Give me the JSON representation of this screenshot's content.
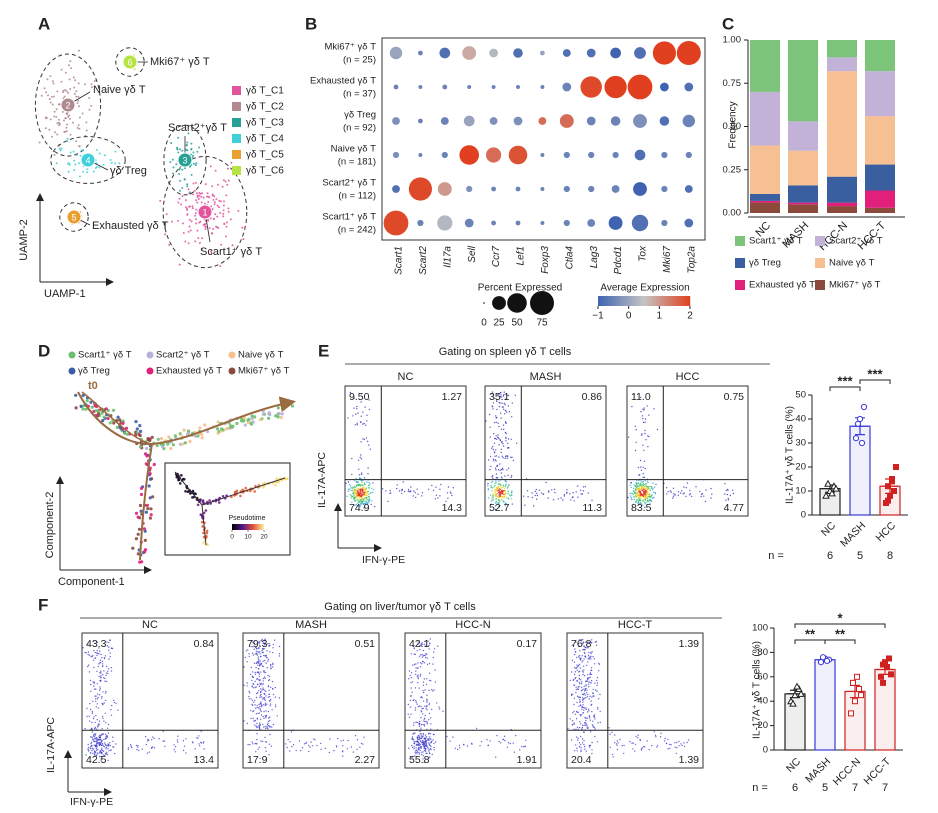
{
  "chart_data": [
    {
      "type": "umap",
      "panel": "A",
      "xlabel": "UAMP-1",
      "ylabel": "UAMP-2",
      "clusters": [
        {
          "name": "γδ T_C1",
          "number": 1,
          "color": "#e2559c",
          "label": "Scart1⁺ γδ T"
        },
        {
          "name": "γδ T_C2",
          "number": 2,
          "color": "#b08a8e",
          "label": "Naive γδ T"
        },
        {
          "name": "γδ T_C3",
          "number": 3,
          "color": "#27a196",
          "label": "Scart2⁺γδ T"
        },
        {
          "name": "γδ T_C4",
          "number": 4,
          "color": "#3fd0da",
          "label": "γδ Treg"
        },
        {
          "name": "γδ T_C5",
          "number": 5,
          "color": "#e8a030",
          "label": "Exhausted γδ T"
        },
        {
          "name": "γδ T_C6",
          "number": 6,
          "color": "#b6e444",
          "label": "Mki67⁺ γδ T"
        }
      ]
    },
    {
      "type": "dotplot",
      "panel": "B",
      "genes": [
        "Scart1",
        "Scart2",
        "Il17a",
        "Sell",
        "Ccr7",
        "Lef1",
        "Foxp3",
        "Ctla4",
        "Lag3",
        "Pdcd1",
        "Tox",
        "Mki67",
        "Top2a"
      ],
      "rows": [
        {
          "name": "Mki67⁺ γδ T",
          "n": "(n = 25)"
        },
        {
          "name": "Exhausted γδ T",
          "n": "(n = 37)"
        },
        {
          "name": "γδ Treg",
          "n": "(n = 92)"
        },
        {
          "name": "Naive γδ T",
          "n": "(n = 181)"
        },
        {
          "name": "Scart2⁺ γδ T",
          "n": "(n = 112)"
        },
        {
          "name": "Scart1⁺ γδ T",
          "n": "(n = 242)"
        }
      ],
      "percent": [
        [
          20,
          3,
          15,
          25,
          10,
          12,
          3,
          8,
          10,
          15,
          18,
          70,
          75
        ],
        [
          3,
          2,
          3,
          2,
          2,
          2,
          2,
          10,
          60,
          65,
          80,
          10,
          10
        ],
        [
          8,
          3,
          8,
          15,
          8,
          10,
          8,
          25,
          10,
          12,
          25,
          12,
          20
        ],
        [
          5,
          2,
          5,
          50,
          30,
          45,
          2,
          5,
          5,
          5,
          15,
          5,
          5
        ],
        [
          8,
          70,
          25,
          5,
          3,
          3,
          2,
          5,
          5,
          8,
          25,
          5,
          8
        ],
        [
          80,
          5,
          30,
          10,
          3,
          3,
          2,
          5,
          8,
          25,
          35,
          5,
          10
        ]
      ],
      "expression": [
        [
          0,
          -0.5,
          -0.8,
          0.8,
          0.3,
          -0.8,
          0,
          -0.8,
          -0.8,
          -1,
          -0.8,
          2,
          2
        ],
        [
          -0.5,
          -0.5,
          -0.5,
          -0.5,
          -0.5,
          -0.5,
          -0.5,
          -0.5,
          1.9,
          2,
          2,
          -1,
          -0.8
        ],
        [
          -0.3,
          -0.5,
          -0.5,
          0,
          -0.3,
          -0.3,
          1.5,
          1.5,
          -0.5,
          -0.5,
          -0.3,
          -0.8,
          -0.5
        ],
        [
          -0.3,
          -0.5,
          -0.5,
          2,
          1.5,
          1.8,
          -0.5,
          -0.5,
          -0.5,
          -0.5,
          -0.8,
          -0.5,
          -0.5
        ],
        [
          -0.8,
          1.9,
          1,
          -0.3,
          -0.5,
          -0.5,
          -0.5,
          -0.5,
          -0.5,
          -0.5,
          -1,
          -0.5,
          -0.8
        ],
        [
          1.9,
          -0.5,
          0.3,
          -0.5,
          -0.5,
          -0.5,
          -0.5,
          -0.5,
          -0.5,
          -1,
          -0.8,
          -0.5,
          -0.8
        ]
      ],
      "size_title": "Percent Expressed",
      "size_ticks": [
        0,
        25,
        50,
        75
      ],
      "color_title": "Average Expression",
      "clim": [
        -1,
        2
      ],
      "color_ticks": [
        {
          "value": -1,
          "label": "−1"
        },
        0,
        1,
        2
      ],
      "colors": [
        "#3f63b0",
        "#c4c4c4",
        "#e0401f"
      ]
    },
    {
      "type": "stacked_bar",
      "panel": "C",
      "ylabel": "Frequency",
      "categories": [
        "NC",
        "MASH",
        "HCC-N",
        "HCC-T"
      ],
      "series": [
        {
          "name": "Mki67⁺ γδ T",
          "color": "#8b4a3c",
          "values": [
            0.06,
            0.05,
            0.04,
            0.03
          ]
        },
        {
          "name": "Exhausted γδ T",
          "color": "#e0207a",
          "values": [
            0.01,
            0.01,
            0.02,
            0.1
          ]
        },
        {
          "name": "γδ Treg",
          "color": "#3a5fa0",
          "values": [
            0.04,
            0.1,
            0.15,
            0.15
          ]
        },
        {
          "name": "Naive γδ T",
          "color": "#f6c092",
          "values": [
            0.28,
            0.2,
            0.61,
            0.28
          ]
        },
        {
          "name": "Scart2⁺ γδ T",
          "color": "#c2b2d8",
          "values": [
            0.31,
            0.17,
            0.08,
            0.26
          ]
        },
        {
          "name": "Scart1⁺ γδ T",
          "color": "#7cc47a",
          "values": [
            0.3,
            0.47,
            0.1,
            0.18
          ]
        }
      ],
      "ylim": [
        0,
        1
      ],
      "yticks": [
        {
          "value": 0,
          "label": "0.00"
        },
        {
          "value": 0.25,
          "label": "0.25"
        },
        {
          "value": 0.5,
          "label": "0.50"
        },
        {
          "value": 0.75,
          "label": "0.75"
        },
        {
          "value": 1,
          "label": "1.00"
        }
      ]
    },
    {
      "type": "trajectory",
      "panel": "D",
      "xlabel": "Component-1",
      "ylabel": "Component-2",
      "start_label": "t0",
      "legend": [
        {
          "name": "Scart1⁺ γδ T",
          "color": "#6cbf6a"
        },
        {
          "name": "Scart2⁺ γδ T",
          "color": "#b8b0d8"
        },
        {
          "name": "Naive γδ T",
          "color": "#f5c08a"
        },
        {
          "name": "γδ Treg",
          "color": "#3a5ca8"
        },
        {
          "name": "Exhausted γδ T",
          "color": "#e0207a"
        },
        {
          "name": "Mki67⁺ γδ T",
          "color": "#8b4a3c"
        }
      ],
      "inset_title": "Pseudotime",
      "inset_ticks": [
        0,
        10,
        20
      ]
    },
    {
      "type": "flow",
      "panel": "E",
      "title": "Gating on spleen γδ T cells",
      "xlabel": "IFN-γ-PE",
      "ylabel": "IL-17A-APC",
      "density": true,
      "groups": [
        {
          "name": "NC",
          "quadrants": [
            "9.50",
            "1.27",
            "74.9",
            "14.3"
          ]
        },
        {
          "name": "MASH",
          "quadrants": [
            "35.1",
            "0.86",
            "52.7",
            "11.3"
          ]
        },
        {
          "name": "HCC",
          "quadrants": [
            "11.0",
            "0.75",
            "83.5",
            "4.77"
          ]
        }
      ]
    },
    {
      "type": "bar",
      "ylabel": "IL-17A⁺ γδ T cells (%)",
      "categories": [
        "NC",
        "MASH",
        "HCC"
      ],
      "values": [
        11,
        37,
        12
      ],
      "errors": [
        1.5,
        3.5,
        3
      ],
      "points": [
        [
          8,
          10,
          12,
          13,
          9,
          11
        ],
        [
          32,
          40,
          45,
          38,
          30
        ],
        [
          5,
          8,
          10,
          12,
          15,
          20,
          6,
          14
        ]
      ],
      "colors": [
        "#222222",
        "#3a3ad8",
        "#d02020"
      ],
      "ylim": [
        0,
        50
      ],
      "yticks": [
        0,
        10,
        20,
        30,
        40,
        50
      ],
      "significance": [
        "***",
        "***"
      ],
      "n_label": "n =",
      "n": [
        6,
        5,
        8
      ]
    },
    {
      "type": "flow",
      "panel": "F",
      "title": "Gating on liver/tumor γδ T cells",
      "xlabel": "IFN-γ-PE",
      "ylabel": "IL-17A-APC",
      "density": false,
      "groups": [
        {
          "name": "NC",
          "quadrants": [
            "43.3",
            "0.84",
            "42.5",
            "13.4"
          ]
        },
        {
          "name": "MASH",
          "quadrants": [
            "79.3",
            "0.51",
            "17.9",
            "2.27"
          ]
        },
        {
          "name": "HCC-N",
          "quadrants": [
            "42.1",
            "0.17",
            "55.8",
            "1.91"
          ]
        },
        {
          "name": "HCC-T",
          "quadrants": [
            "76.8",
            "1.39",
            "20.4",
            "1.39"
          ]
        }
      ]
    },
    {
      "type": "bar",
      "ylabel": "IL-17A⁺ γδ T cells (%)",
      "categories": [
        "NC",
        "MASH",
        "HCC-N",
        "HCC-T"
      ],
      "values": [
        46,
        74,
        48,
        66
      ],
      "errors": [
        3,
        1,
        5,
        4
      ],
      "points": [
        [
          40,
          45,
          50,
          38,
          52,
          46
        ],
        [
          72,
          75,
          74,
          76,
          73
        ],
        [
          30,
          40,
          50,
          55,
          60,
          45,
          55
        ],
        [
          60,
          72,
          75,
          55,
          68,
          62,
          70
        ]
      ],
      "colors": [
        "#222222",
        "#3a3ad8",
        "#d02020",
        "#d02020"
      ],
      "ylim": [
        0,
        100
      ],
      "yticks": [
        0,
        20,
        40,
        60,
        80,
        100
      ],
      "significance": [
        "**",
        "**",
        "*"
      ],
      "n_label": "n =",
      "n": [
        6,
        5,
        7,
        7
      ]
    }
  ]
}
